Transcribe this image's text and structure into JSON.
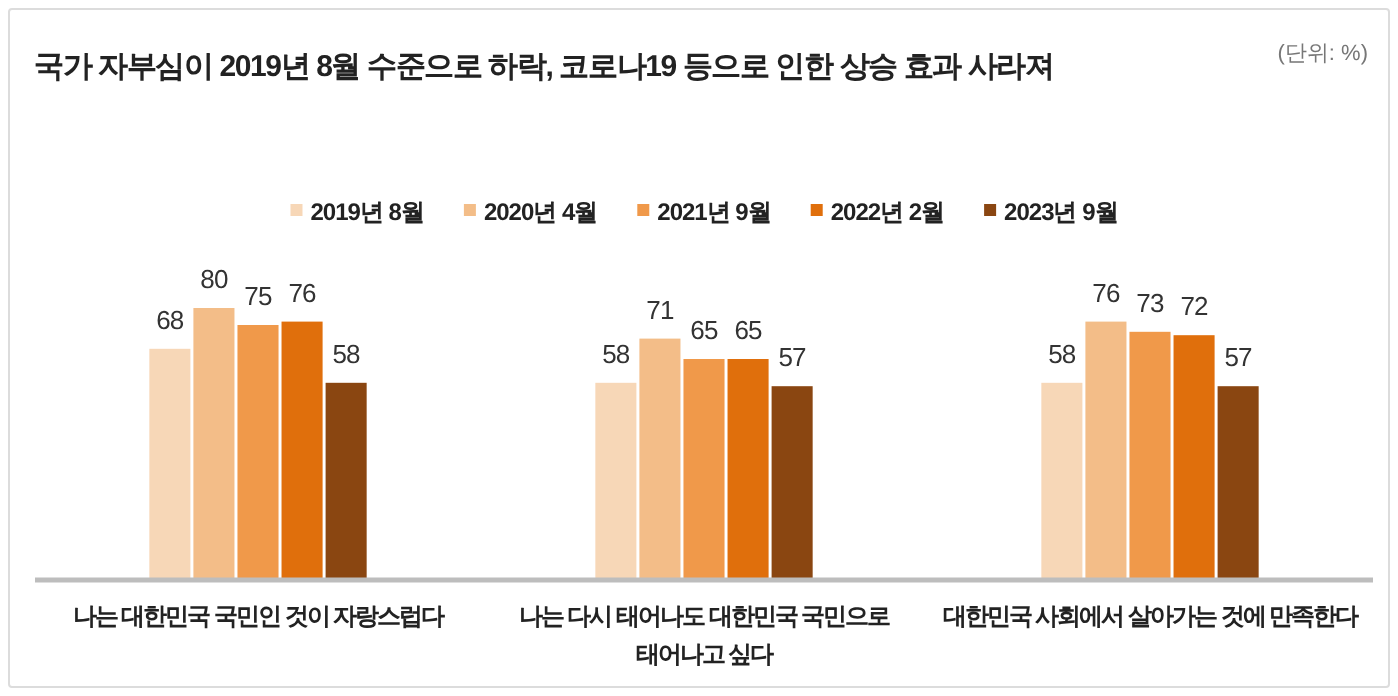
{
  "chart_data": {
    "type": "bar",
    "title": "국가 자부심이 2019년 8월 수준으로 하락, 코로나19 등으로 인한 상승 효과 사라져",
    "annotations": [
      "(단위: %)"
    ],
    "categories": [
      "나는 대한민국 국민인 것이 자랑스럽다",
      "나는 다시 태어나도 대한민국 국민으로 태어나고 싶다",
      "대한민국 사회에서 살아가는 것에 만족한다"
    ],
    "series": [
      {
        "name": "2019년 8월",
        "color": "#f7d7b7",
        "values": [
          68,
          58,
          58
        ]
      },
      {
        "name": "2020년 4월",
        "color": "#f3bd88",
        "values": [
          80,
          71,
          76
        ]
      },
      {
        "name": "2021년 9월",
        "color": "#f0994a",
        "values": [
          75,
          65,
          73
        ]
      },
      {
        "name": "2022년 2월",
        "color": "#e06f0c",
        "values": [
          76,
          65,
          72
        ]
      },
      {
        "name": "2023년 9월",
        "color": "#8a4611",
        "values": [
          58,
          57,
          57
        ]
      }
    ],
    "data_labels": true,
    "legend": "top",
    "grid": false
  }
}
